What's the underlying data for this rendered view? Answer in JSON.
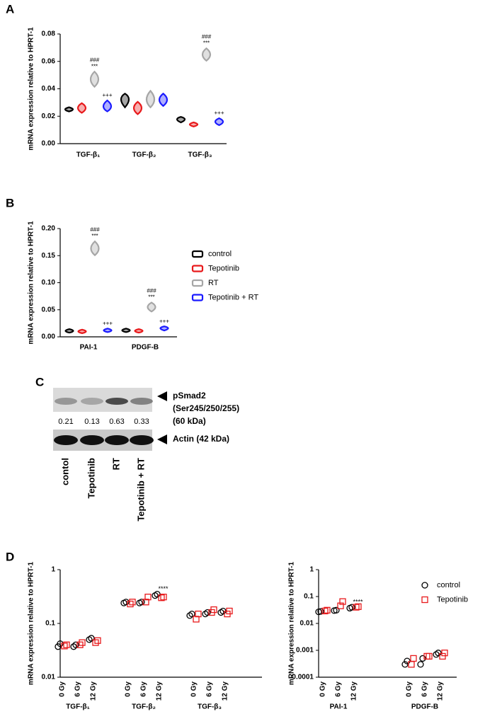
{
  "chart_data": [
    {
      "type": "violin",
      "label": "A",
      "y_label": "mRNA expression relative to HPRT-1",
      "categories": [
        "TGF-β₁",
        "TGF-β₂",
        "TGF-β₃"
      ],
      "ylim": [
        0,
        0.08
      ],
      "yticks": [
        {
          "value": 0,
          "label": "0.00"
        },
        0.02,
        0.04,
        0.06,
        0.08
      ],
      "series": [
        {
          "name": "control",
          "color": "#000000",
          "values": [
            0.025,
            0.033,
            0.018
          ],
          "low": [
            0.024,
            0.027,
            0.016
          ],
          "high": [
            0.026,
            0.036,
            0.019
          ]
        },
        {
          "name": "Tepotinib",
          "color": "#e8191b",
          "values": [
            0.026,
            0.026,
            0.014
          ],
          "low": [
            0.023,
            0.022,
            0.013
          ],
          "high": [
            0.029,
            0.03,
            0.015
          ]
        },
        {
          "name": "RT",
          "color": "#a6a6a6",
          "values": [
            0.047,
            0.032,
            0.065
          ],
          "low": [
            0.042,
            0.027,
            0.061
          ],
          "high": [
            0.052,
            0.038,
            0.069
          ],
          "annotations": [
            [
              "###",
              "***"
            ],
            null,
            [
              "###",
              "***"
            ]
          ]
        },
        {
          "name": "Tepotinib + RT",
          "color": "#1a1aff",
          "values": [
            0.027,
            0.032,
            0.016
          ],
          "low": [
            0.024,
            0.028,
            0.014
          ],
          "high": [
            0.031,
            0.036,
            0.018
          ],
          "annotations": [
            [
              "+++"
            ],
            null,
            [
              "+++"
            ]
          ]
        }
      ]
    },
    {
      "type": "violin",
      "label": "B",
      "y_label": "mRNA expression relative to HPRT-1",
      "categories": [
        "PAI-1",
        "PDGF-B"
      ],
      "legend": "right",
      "ylim": [
        0,
        0.2
      ],
      "yticks": [
        {
          "value": 0,
          "label": "0.00"
        },
        0.05,
        {
          "value": 0.1,
          "label": "0.10"
        },
        0.15,
        {
          "value": 0.2,
          "label": "0.20"
        }
      ],
      "series": [
        {
          "name": "control",
          "color": "#000000",
          "values": [
            0.011,
            0.012
          ],
          "low": [
            0.009,
            0.01
          ],
          "high": [
            0.013,
            0.014
          ]
        },
        {
          "name": "Tepotinib",
          "color": "#e8191b",
          "values": [
            0.01,
            0.011
          ],
          "low": [
            0.008,
            0.009
          ],
          "high": [
            0.012,
            0.013
          ]
        },
        {
          "name": "RT",
          "color": "#a6a6a6",
          "values": [
            0.163,
            0.055
          ],
          "low": [
            0.152,
            0.048
          ],
          "high": [
            0.175,
            0.062
          ],
          "annotations": [
            [
              "###",
              "***"
            ],
            [
              "###",
              "***"
            ]
          ]
        },
        {
          "name": "Tepotinib + RT",
          "color": "#1a1aff",
          "values": [
            0.012,
            0.016
          ],
          "low": [
            0.01,
            0.013
          ],
          "high": [
            0.014,
            0.018
          ],
          "annotations": [
            [
              "+++"
            ],
            [
              "+++"
            ]
          ]
        }
      ]
    },
    {
      "type": "dot",
      "label": "D",
      "y_label": "mRNA expression relative to HPRT-1",
      "log": true,
      "groups": [
        "TGF-β₁",
        "TGF-β₂",
        "TGF-β₃"
      ],
      "categories": [
        "0 Gy",
        "6 Gy",
        "12 Gy",
        "0 Gy",
        "6 Gy",
        "12 Gy",
        "0 Gy",
        "6 Gy",
        "12 Gy"
      ],
      "ylim": [
        0.01,
        1
      ],
      "yticks": [
        0.01,
        0.1,
        1
      ],
      "series": [
        {
          "name": "control",
          "color": "#000000",
          "marker": "circle",
          "values": [
            [
              0.037,
              0.042
            ],
            [
              0.037,
              0.04
            ],
            [
              0.05,
              0.053
            ],
            [
              0.24,
              0.25
            ],
            [
              0.24,
              0.25
            ],
            [
              0.33,
              0.35
            ],
            [
              0.14,
              0.15
            ],
            [
              0.15,
              0.16
            ],
            [
              0.16,
              0.17
            ]
          ],
          "annotations": [
            null,
            null,
            null,
            null,
            null,
            "****",
            null,
            null,
            null
          ]
        },
        {
          "name": "Tepotinib",
          "color": "#e8191b",
          "marker": "square",
          "values": [
            [
              0.038,
              0.04
            ],
            [
              0.04,
              0.044
            ],
            [
              0.044,
              0.048
            ],
            [
              0.23,
              0.25
            ],
            [
              0.25,
              0.31
            ],
            [
              0.3,
              0.31
            ],
            [
              0.12,
              0.15
            ],
            [
              0.16,
              0.18
            ],
            [
              0.15,
              0.17
            ]
          ]
        }
      ]
    },
    {
      "type": "dot",
      "y_label": "mRNA expression relative to HPRT-1",
      "log": true,
      "legend": "upper right",
      "groups": [
        "PAI-1",
        "PDGF-B"
      ],
      "categories": [
        "0 Gy",
        "6 Gy",
        "12 Gy",
        "0 Gy",
        "6 Gy",
        "12 Gy"
      ],
      "ylim": [
        0.0001,
        1
      ],
      "yticks": [
        0.0001,
        0.001,
        0.01,
        0.1,
        1
      ],
      "series": [
        {
          "name": "control",
          "color": "#000000",
          "marker": "circle",
          "values": [
            [
              0.027,
              0.028
            ],
            [
              0.03,
              0.031
            ],
            [
              0.037,
              0.04
            ],
            [
              0.0003,
              0.0004
            ],
            [
              0.0003,
              0.0005
            ],
            [
              0.0007,
              0.0008
            ]
          ],
          "annotations": [
            null,
            null,
            "****",
            null,
            null,
            null
          ]
        },
        {
          "name": "Tepotinib",
          "color": "#e8191b",
          "marker": "square",
          "values": [
            [
              0.029,
              0.031
            ],
            [
              0.045,
              0.065
            ],
            [
              0.04,
              0.042
            ],
            [
              0.0003,
              0.0005
            ],
            [
              0.0006,
              0.0006
            ],
            [
              0.0006,
              0.0008
            ]
          ]
        }
      ]
    }
  ],
  "blot": {
    "label": "C",
    "lanes": [
      "contol",
      "Tepotinib",
      "RT",
      "Tepotinib + RT"
    ],
    "quantification": [
      0.21,
      0.13,
      0.63,
      0.33
    ],
    "bands": [
      [
        "pSmad2",
        "(Ser245/250/255)",
        "(60 kDa)"
      ],
      [
        "Actin (42 kDa)"
      ]
    ]
  }
}
